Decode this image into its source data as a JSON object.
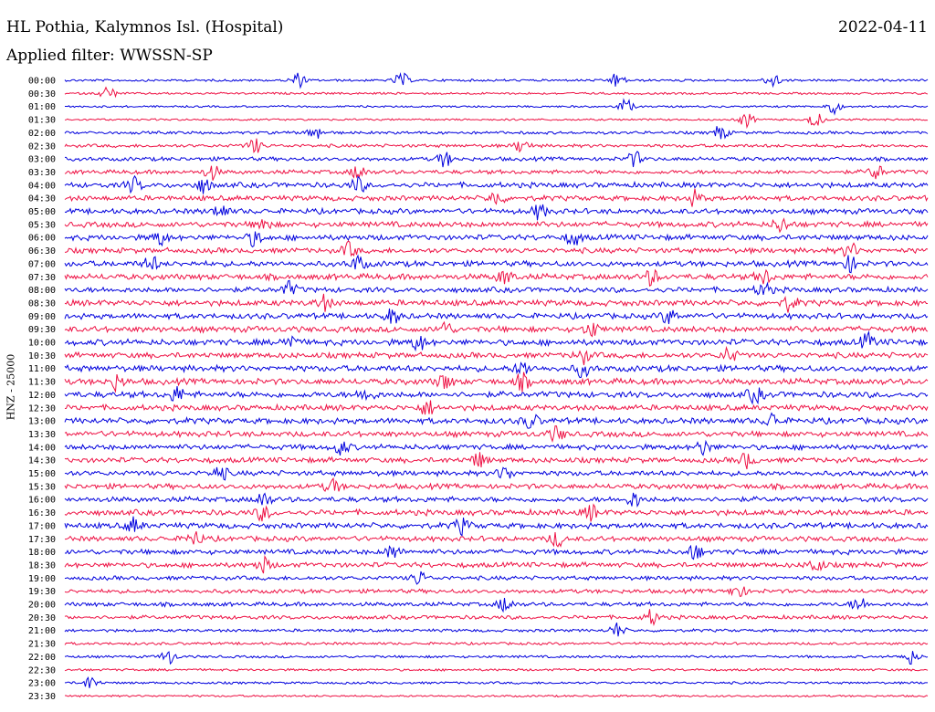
{
  "header": {
    "station": "HL Pothia, Kalymnos Isl. (Hospital)",
    "date": "2022-04-11",
    "filter": "Applied filter: WWSSN-SP"
  },
  "colors": {
    "blue": "#0000dd",
    "red": "#ee1144",
    "text": "#000000",
    "background": "#ffffff"
  },
  "chart_data": {
    "type": "line",
    "title": "HL Pothia, Kalymnos Isl. (Hospital)",
    "ylabel": "HNZ - 25000",
    "grid": false,
    "legend": "none",
    "series_colors_alternate": [
      "blue",
      "red"
    ],
    "rows": [
      {
        "time": "00:00",
        "activity": 0.12,
        "bursts": [
          0.27,
          0.39,
          0.64,
          0.82
        ]
      },
      {
        "time": "00:30",
        "activity": 0.1,
        "bursts": [
          0.05
        ]
      },
      {
        "time": "01:00",
        "activity": 0.08,
        "bursts": [
          0.65,
          0.89
        ]
      },
      {
        "time": "01:30",
        "activity": 0.08,
        "bursts": [
          0.79,
          0.87
        ]
      },
      {
        "time": "02:00",
        "activity": 0.18,
        "bursts": [
          0.29,
          0.76
        ]
      },
      {
        "time": "02:30",
        "activity": 0.22,
        "bursts": [
          0.22,
          0.53
        ]
      },
      {
        "time": "03:00",
        "activity": 0.28,
        "bursts": [
          0.44,
          0.66
        ]
      },
      {
        "time": "03:30",
        "activity": 0.3,
        "bursts": [
          0.17,
          0.34,
          0.94
        ]
      },
      {
        "time": "04:00",
        "activity": 0.42,
        "bursts": [
          0.08,
          0.16,
          0.34
        ]
      },
      {
        "time": "04:30",
        "activity": 0.4,
        "bursts": [
          0.5,
          0.73
        ]
      },
      {
        "time": "05:00",
        "activity": 0.42,
        "bursts": [
          0.18,
          0.55
        ]
      },
      {
        "time": "05:30",
        "activity": 0.45,
        "bursts": [
          0.23,
          0.83
        ]
      },
      {
        "time": "06:00",
        "activity": 0.45,
        "bursts": [
          0.11,
          0.22,
          0.59
        ]
      },
      {
        "time": "06:30",
        "activity": 0.42,
        "bursts": [
          0.33,
          0.91
        ]
      },
      {
        "time": "07:00",
        "activity": 0.45,
        "bursts": [
          0.1,
          0.34,
          0.91
        ]
      },
      {
        "time": "07:30",
        "activity": 0.48,
        "bursts": [
          0.51,
          0.68,
          0.81
        ]
      },
      {
        "time": "08:00",
        "activity": 0.42,
        "bursts": [
          0.26,
          0.81
        ]
      },
      {
        "time": "08:30",
        "activity": 0.48,
        "bursts": [
          0.3,
          0.84
        ]
      },
      {
        "time": "09:00",
        "activity": 0.45,
        "bursts": [
          0.38,
          0.7
        ]
      },
      {
        "time": "09:30",
        "activity": 0.48,
        "bursts": [
          0.44,
          0.61
        ]
      },
      {
        "time": "10:00",
        "activity": 0.5,
        "bursts": [
          0.26,
          0.41,
          0.93
        ]
      },
      {
        "time": "10:30",
        "activity": 0.45,
        "bursts": [
          0.6,
          0.77
        ]
      },
      {
        "time": "11:00",
        "activity": 0.5,
        "bursts": [
          0.53,
          0.6
        ]
      },
      {
        "time": "11:30",
        "activity": 0.5,
        "bursts": [
          0.06,
          0.44,
          0.53
        ]
      },
      {
        "time": "12:00",
        "activity": 0.5,
        "bursts": [
          0.13,
          0.35,
          0.8
        ]
      },
      {
        "time": "12:30",
        "activity": 0.45,
        "bursts": [
          0.42
        ]
      },
      {
        "time": "13:00",
        "activity": 0.48,
        "bursts": [
          0.54,
          0.82
        ]
      },
      {
        "time": "13:30",
        "activity": 0.45,
        "bursts": [
          0.57
        ]
      },
      {
        "time": "14:00",
        "activity": 0.42,
        "bursts": [
          0.32,
          0.74
        ]
      },
      {
        "time": "14:30",
        "activity": 0.42,
        "bursts": [
          0.48,
          0.79
        ]
      },
      {
        "time": "15:00",
        "activity": 0.4,
        "bursts": [
          0.18,
          0.51
        ]
      },
      {
        "time": "15:30",
        "activity": 0.42,
        "bursts": [
          0.31
        ]
      },
      {
        "time": "16:00",
        "activity": 0.42,
        "bursts": [
          0.23,
          0.66
        ]
      },
      {
        "time": "16:30",
        "activity": 0.45,
        "bursts": [
          0.23,
          0.61
        ]
      },
      {
        "time": "17:00",
        "activity": 0.45,
        "bursts": [
          0.08,
          0.46
        ]
      },
      {
        "time": "17:30",
        "activity": 0.4,
        "bursts": [
          0.15,
          0.57
        ]
      },
      {
        "time": "18:00",
        "activity": 0.4,
        "bursts": [
          0.38,
          0.73
        ]
      },
      {
        "time": "18:30",
        "activity": 0.4,
        "bursts": [
          0.23,
          0.87
        ]
      },
      {
        "time": "19:00",
        "activity": 0.3,
        "bursts": [
          0.41
        ]
      },
      {
        "time": "19:30",
        "activity": 0.3,
        "bursts": [
          0.78
        ]
      },
      {
        "time": "20:00",
        "activity": 0.3,
        "bursts": [
          0.51,
          0.92
        ]
      },
      {
        "time": "20:30",
        "activity": 0.28,
        "bursts": [
          0.68
        ]
      },
      {
        "time": "21:00",
        "activity": 0.18,
        "bursts": [
          0.64
        ]
      },
      {
        "time": "21:30",
        "activity": 0.15,
        "bursts": []
      },
      {
        "time": "22:00",
        "activity": 0.14,
        "bursts": [
          0.12,
          0.98
        ]
      },
      {
        "time": "22:30",
        "activity": 0.12,
        "bursts": []
      },
      {
        "time": "23:00",
        "activity": 0.12,
        "bursts": [
          0.03
        ]
      },
      {
        "time": "23:30",
        "activity": 0.08,
        "bursts": []
      }
    ]
  }
}
